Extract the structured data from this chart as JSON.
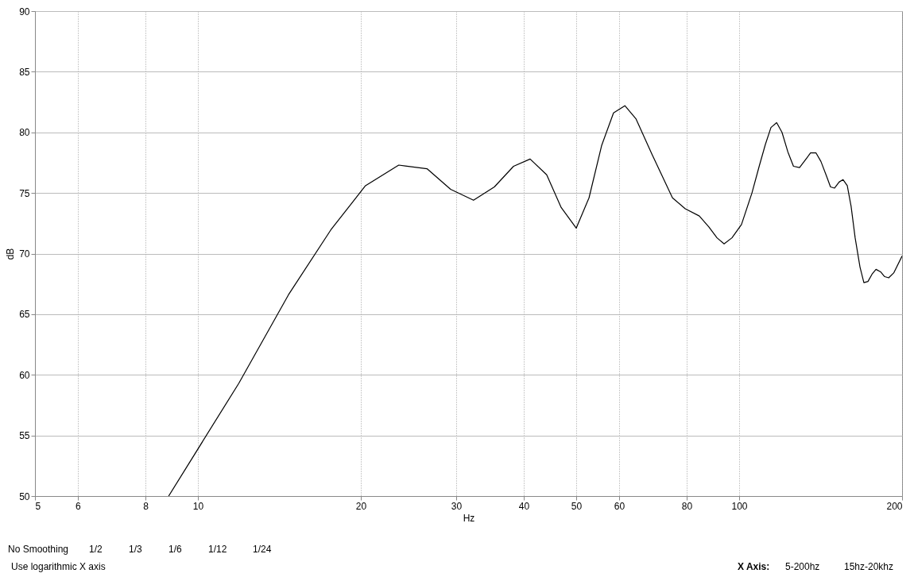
{
  "chart_data": {
    "type": "line",
    "xlabel": "Hz",
    "ylabel": "dB",
    "log": "x",
    "grid": true,
    "line_style": "solid",
    "xlim": [
      5,
      200
    ],
    "xticks": [
      5,
      6,
      8,
      10,
      20,
      30,
      40,
      50,
      60,
      80,
      100,
      200
    ],
    "ylim": [
      50,
      90
    ],
    "yticks": [
      50,
      55,
      60,
      65,
      70,
      75,
      80,
      85,
      90
    ],
    "series": [
      {
        "color": "#000000",
        "x": [
          8.83,
          11.9,
          14.7,
          17.6,
          20.4,
          23.5,
          26.5,
          29.3,
          32.3,
          35.3,
          38.3,
          41.1,
          44.1,
          46.9,
          50.0,
          52.8,
          55.7,
          58.6,
          61.5,
          64.5,
          69.0,
          75.3,
          79.5,
          84.4,
          87.9,
          91.0,
          93.8,
          97.0,
          101,
          105.6,
          108.9,
          111.8,
          114.5,
          117.3,
          120.0,
          123,
          126,
          129.3,
          132.4,
          135.5,
          138.7,
          141.6,
          145,
          147.5,
          150,
          153,
          155.6,
          158.4,
          161,
          163.8,
          167.2,
          170,
          173,
          176,
          179,
          182.5,
          185.7,
          188.9,
          193,
          200
        ],
        "values": [
          50.0,
          59.3,
          66.6,
          71.95,
          75.6,
          77.3,
          77.0,
          75.3,
          74.4,
          75.5,
          77.2,
          77.8,
          76.5,
          73.8,
          72.1,
          74.6,
          78.9,
          81.6,
          82.2,
          81.1,
          78.2,
          74.6,
          73.7,
          73.1,
          72.2,
          71.3,
          70.8,
          71.3,
          72.4,
          75.0,
          77.2,
          79.0,
          80.4,
          80.8,
          80.0,
          78.4,
          77.2,
          77.1,
          77.7,
          78.3,
          78.3,
          77.6,
          76.4,
          75.5,
          75.4,
          75.9,
          76.1,
          75.6,
          73.9,
          71.3,
          68.9,
          67.6,
          67.7,
          68.3,
          68.7,
          68.5,
          68.1,
          68.0,
          68.4,
          69.8
        ]
      }
    ],
    "annotations": [
      "No Smoothing",
      "1/2",
      "1/3",
      "1/6",
      "1/12",
      "1/24",
      "Use logarithmic X axis",
      "X Axis:",
      "5-200hz",
      "15hz-20khz"
    ]
  }
}
